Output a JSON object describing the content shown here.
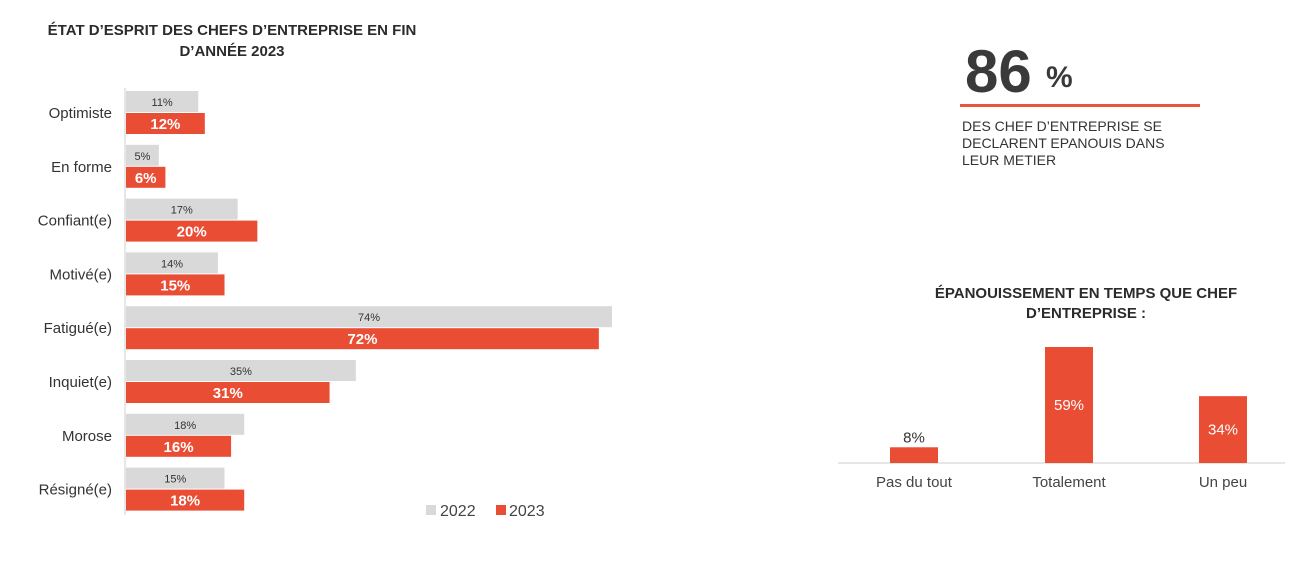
{
  "chart_data": [
    {
      "type": "bar",
      "orientation": "horizontal",
      "title_lines": [
        "ÉTAT D’ESPRIT DES CHEFS D’ENTREPRISE EN FIN",
        "D’ANNÉE 2023"
      ],
      "categories": [
        "Optimiste",
        "En forme",
        "Confiant(e)",
        "Motivé(e)",
        "Fatigué(e)",
        "Inquiet(e)",
        "Morose",
        "Résigné(e)"
      ],
      "series": [
        {
          "name": "2022",
          "color": "#d9d9d9",
          "values": [
            11,
            5,
            17,
            14,
            74,
            35,
            18,
            15
          ],
          "labels": [
            "11%",
            "5%",
            "17%",
            "14%",
            "74%",
            "35%",
            "18%",
            "15%"
          ]
        },
        {
          "name": "2023",
          "color": "#e94e35",
          "values": [
            12,
            6,
            20,
            15,
            72,
            31,
            16,
            18
          ],
          "labels": [
            "12%",
            "6%",
            "20%",
            "15%",
            "72%",
            "31%",
            "16%",
            "18%"
          ]
        }
      ],
      "legend": [
        "2022",
        "2023"
      ],
      "legend_position": "bottom-right",
      "xlim": [
        0,
        74
      ]
    },
    {
      "type": "bar",
      "title_lines": [
        "ÉPANOUISSEMENT EN TEMPS QUE CHEF",
        "D’ENTREPRISE :"
      ],
      "categories": [
        "Pas du tout",
        "Totalement",
        "Un peu"
      ],
      "values": [
        8,
        59,
        34
      ],
      "labels": [
        "8%",
        "59%",
        "34%"
      ],
      "color": "#e94e35",
      "ylim": [
        0,
        59
      ]
    }
  ],
  "stat": {
    "number": "86",
    "unit": "%",
    "description_lines": [
      "DES CHEF D’ENTREPRISE SE",
      "DECLARENT EPANOUIS DANS",
      "LEUR METIER"
    ],
    "accent_color": "#e8573c"
  }
}
